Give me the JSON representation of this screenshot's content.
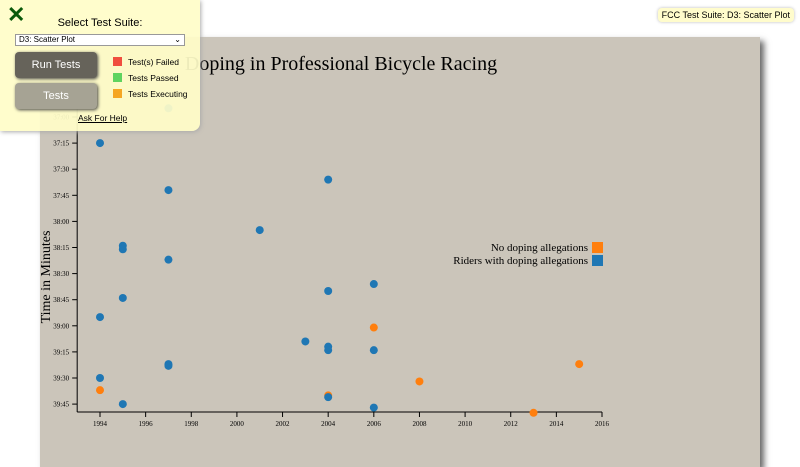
{
  "badge": "FCC Test Suite: D3: Scatter Plot",
  "panel": {
    "close_icon": "close-x-icon",
    "label": "Select Test Suite:",
    "selected": "D3: Scatter Plot",
    "run": "Run Tests",
    "tests": "Tests",
    "legend": [
      {
        "label": "Test(s) Failed",
        "color": "#f04e3e"
      },
      {
        "label": "Tests Passed",
        "color": "#5fd35f"
      },
      {
        "label": "Tests Executing",
        "color": "#f5a623"
      }
    ],
    "help": "Ask For Help"
  },
  "chart_data": {
    "type": "scatter",
    "title": "Doping in Professional Bicycle Racing",
    "ylabel": "Time in Minutes",
    "xlabel": "",
    "xlim": [
      1993,
      2016
    ],
    "x_ticks": [
      "1994",
      "1996",
      "1998",
      "2000",
      "2002",
      "2004",
      "2006",
      "2008",
      "2010",
      "2012",
      "2014",
      "2016"
    ],
    "y_ticks": [
      "37:00",
      "37:15",
      "37:30",
      "37:45",
      "38:00",
      "38:15",
      "38:30",
      "38:45",
      "39:00",
      "39:15",
      "39:30",
      "39:45"
    ],
    "y_reversed": true,
    "legend_position": "right",
    "legend": [
      {
        "label": "No doping allegations",
        "color": "#ff7f0e"
      },
      {
        "label": "Riders with doping allegations",
        "color": "#1f77b4"
      }
    ],
    "points": [
      {
        "year": 1994,
        "time": "37:15",
        "doping": true
      },
      {
        "year": 1997,
        "time": "36:55",
        "doping": true
      },
      {
        "year": 1997,
        "time": "37:42",
        "doping": true
      },
      {
        "year": 2004,
        "time": "37:36",
        "doping": true
      },
      {
        "year": 2001,
        "time": "38:05",
        "doping": true
      },
      {
        "year": 1995,
        "time": "38:14",
        "doping": true
      },
      {
        "year": 1995,
        "time": "38:16",
        "doping": true
      },
      {
        "year": 1997,
        "time": "38:22",
        "doping": true
      },
      {
        "year": 2006,
        "time": "38:36",
        "doping": true
      },
      {
        "year": 2004,
        "time": "38:40",
        "doping": true
      },
      {
        "year": 1995,
        "time": "38:44",
        "doping": true
      },
      {
        "year": 1994,
        "time": "38:55",
        "doping": true
      },
      {
        "year": 2006,
        "time": "39:01",
        "doping": false
      },
      {
        "year": 2003,
        "time": "39:09",
        "doping": true
      },
      {
        "year": 2004,
        "time": "39:12",
        "doping": true
      },
      {
        "year": 2004,
        "time": "39:14",
        "doping": true
      },
      {
        "year": 2006,
        "time": "39:14",
        "doping": true
      },
      {
        "year": 1997,
        "time": "39:22",
        "doping": true
      },
      {
        "year": 1997,
        "time": "39:23",
        "doping": true
      },
      {
        "year": 2015,
        "time": "39:22",
        "doping": false
      },
      {
        "year": 1994,
        "time": "39:30",
        "doping": true
      },
      {
        "year": 2008,
        "time": "39:32",
        "doping": false
      },
      {
        "year": 1994,
        "time": "39:37",
        "doping": false
      },
      {
        "year": 2004,
        "time": "39:40",
        "doping": false
      },
      {
        "year": 2004,
        "time": "39:41",
        "doping": true
      },
      {
        "year": 1995,
        "time": "39:45",
        "doping": true
      },
      {
        "year": 2006,
        "time": "39:47",
        "doping": true
      },
      {
        "year": 2013,
        "time": "39:50",
        "doping": false
      }
    ]
  }
}
